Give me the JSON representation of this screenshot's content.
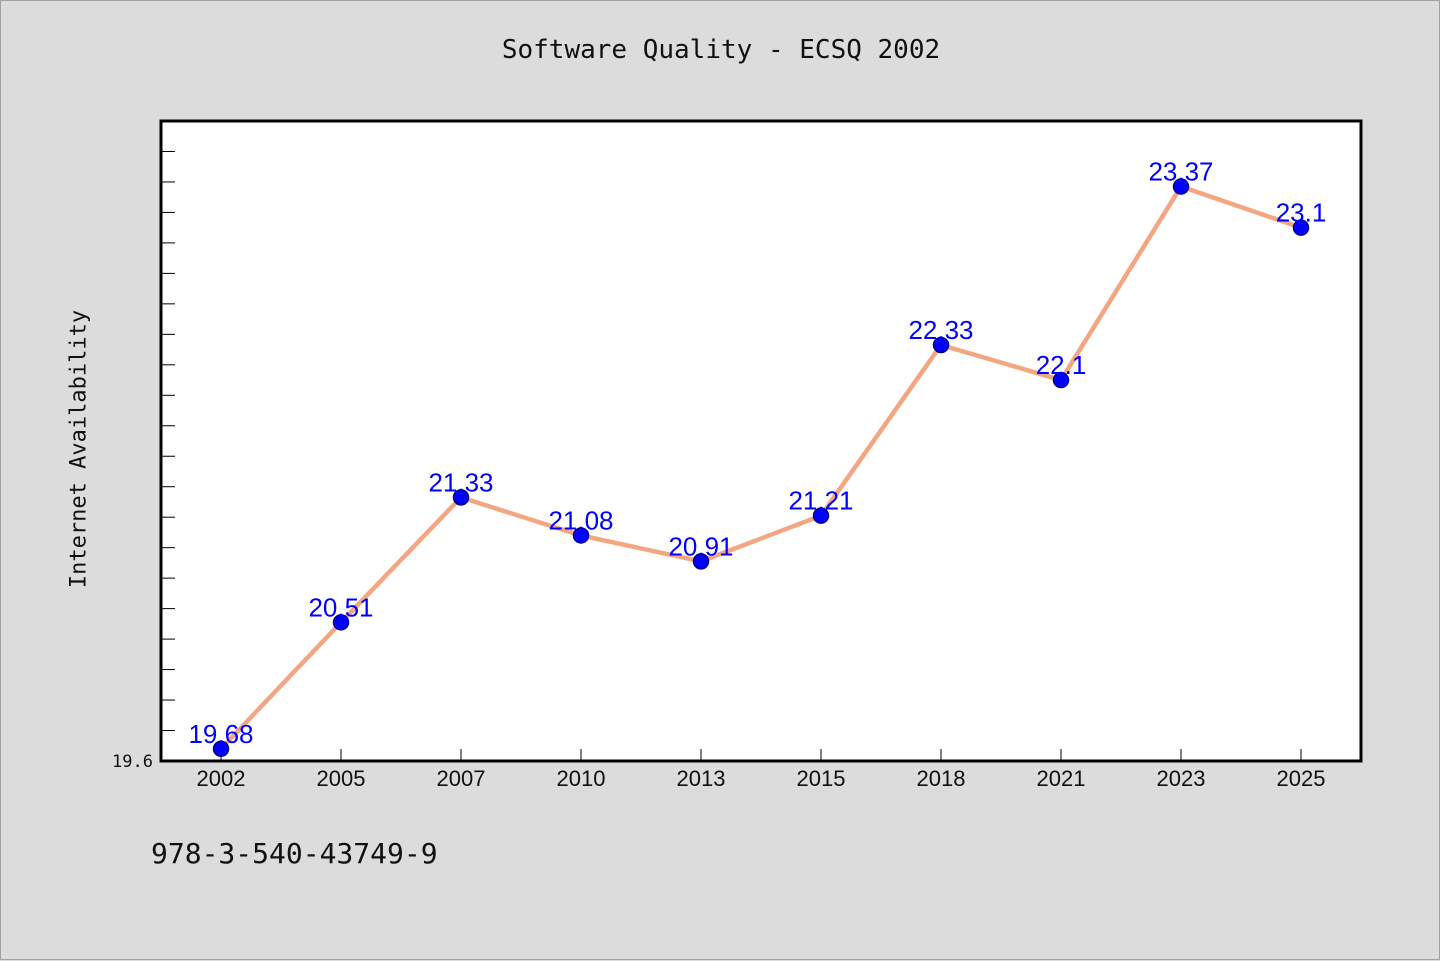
{
  "chart_data": {
    "type": "line",
    "title": "Software Quality - ECSQ 2002",
    "xlabel": "",
    "ylabel": "Internet Availability",
    "categories": [
      "2002",
      "2005",
      "2007",
      "2010",
      "2013",
      "2015",
      "2018",
      "2021",
      "2023",
      "2025"
    ],
    "series": [
      {
        "values": [
          19.68,
          20.51,
          21.33,
          21.08,
          20.91,
          21.21,
          22.33,
          22.1,
          23.37,
          23.1
        ],
        "labels": [
          "19.68",
          "20.51",
          "21.33",
          "21.08",
          "20.91",
          "21.21",
          "22.33",
          "22.1",
          "23.37",
          "23.1"
        ]
      }
    ],
    "ylim": [
      19.6,
      23.8
    ],
    "y_tick_labels": [
      "19.6"
    ],
    "grid": false,
    "legend": "none"
  },
  "colors": {
    "line": "#f4a582",
    "marker": "#0000ff",
    "data_label": "#0000ff",
    "background": "#dcdcdc",
    "plot_background": "#ffffff"
  },
  "footer": {
    "code": "978-3-540-43749-9"
  }
}
